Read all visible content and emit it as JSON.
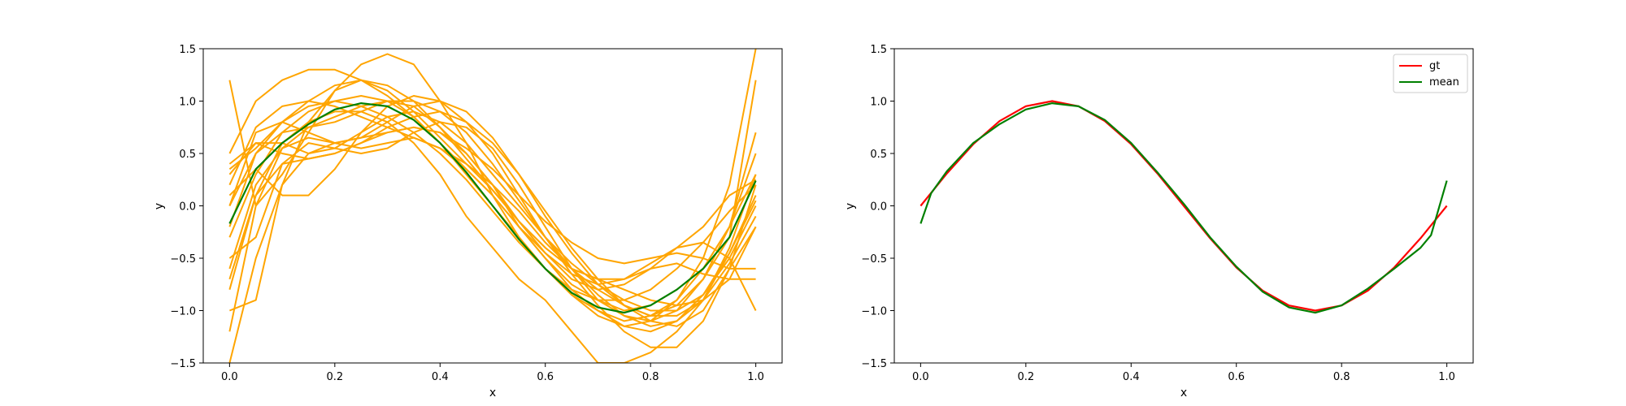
{
  "chart_data": [
    {
      "type": "line",
      "title": "",
      "xlabel": "x",
      "ylabel": "y",
      "xlim": [
        -0.05,
        1.05
      ],
      "ylim": [
        -1.5,
        1.5
      ],
      "xticks": [
        "0.0",
        "0.2",
        "0.4",
        "0.6",
        "0.8",
        "1.0"
      ],
      "yticks": [
        "−1.5",
        "−1.0",
        "−0.5",
        "0.0",
        "0.5",
        "1.0",
        "1.5"
      ],
      "grid": false,
      "colors": {
        "samples": "#ffa500",
        "mean": "#008000"
      },
      "samples": [
        {
          "x": [
            0,
            0.05,
            0.1,
            0.15,
            0.2,
            0.25,
            0.3,
            0.35,
            0.4,
            0.45,
            0.5,
            0.55,
            0.6,
            0.65,
            0.7,
            0.75,
            0.8,
            0.85,
            0.9,
            0.95,
            1
          ],
          "y": [
            -0.6,
            0.2,
            0.55,
            0.75,
            0.85,
            0.95,
            1.0,
            0.95,
            0.75,
            0.5,
            0.2,
            -0.2,
            -0.5,
            -0.75,
            -0.9,
            -1.0,
            -0.95,
            -0.8,
            -0.6,
            -0.2,
            0.3
          ]
        },
        {
          "x": [
            0,
            0.05,
            0.1,
            0.15,
            0.2,
            0.25,
            0.3,
            0.35,
            0.4,
            0.45,
            0.5,
            0.55,
            0.6,
            0.65,
            0.7,
            0.75,
            0.8,
            0.85,
            0.9,
            0.95,
            1
          ],
          "y": [
            1.2,
            0.0,
            0.3,
            0.7,
            1.1,
            1.35,
            1.45,
            1.35,
            1.0,
            0.6,
            0.1,
            -0.3,
            -0.6,
            -0.85,
            -1.05,
            -1.15,
            -1.1,
            -0.9,
            -0.5,
            0.2,
            1.5
          ]
        },
        {
          "x": [
            0,
            0.05,
            0.1,
            0.15,
            0.2,
            0.25,
            0.3,
            0.35,
            0.4,
            0.45,
            0.5,
            0.55,
            0.6,
            0.65,
            0.7,
            0.75,
            0.8,
            0.85,
            0.9,
            0.95,
            1
          ],
          "y": [
            -1.5,
            -0.5,
            0.2,
            0.5,
            0.6,
            0.65,
            0.7,
            0.75,
            0.7,
            0.5,
            0.2,
            -0.15,
            -0.4,
            -0.6,
            -0.7,
            -0.8,
            -0.9,
            -0.95,
            -0.9,
            -0.7,
            -0.2
          ]
        },
        {
          "x": [
            0,
            0.05,
            0.1,
            0.15,
            0.2,
            0.25,
            0.3,
            0.35,
            0.4,
            0.45,
            0.5,
            0.55,
            0.6,
            0.65,
            0.7,
            0.75,
            0.8,
            0.85,
            0.9,
            0.95,
            1
          ],
          "y": [
            0.3,
            0.6,
            0.6,
            0.5,
            0.55,
            0.7,
            0.85,
            0.9,
            0.8,
            0.6,
            0.3,
            0.0,
            -0.3,
            -0.55,
            -0.75,
            -0.9,
            -1.0,
            -1.0,
            -0.85,
            -0.5,
            0.0
          ]
        },
        {
          "x": [
            0,
            0.05,
            0.1,
            0.15,
            0.2,
            0.25,
            0.3,
            0.35,
            0.4,
            0.45,
            0.5,
            0.55,
            0.6,
            0.65,
            0.7,
            0.75,
            0.8,
            0.85,
            0.9,
            0.95,
            1
          ],
          "y": [
            0.0,
            0.7,
            0.8,
            0.7,
            0.6,
            0.55,
            0.6,
            0.65,
            0.55,
            0.35,
            0.1,
            -0.2,
            -0.5,
            -0.8,
            -1.0,
            -1.15,
            -1.2,
            -1.1,
            -0.85,
            -0.45,
            0.1
          ]
        },
        {
          "x": [
            0,
            0.05,
            0.1,
            0.15,
            0.2,
            0.25,
            0.3,
            0.35,
            0.4,
            0.45,
            0.5,
            0.55,
            0.6,
            0.65,
            0.7,
            0.75,
            0.8,
            0.85,
            0.9,
            0.95,
            1
          ],
          "y": [
            -1.0,
            -0.9,
            0.2,
            0.8,
            1.1,
            1.2,
            1.1,
            0.9,
            0.65,
            0.4,
            0.15,
            -0.15,
            -0.45,
            -0.7,
            -0.8,
            -0.75,
            -0.6,
            -0.55,
            -0.65,
            -0.7,
            -0.7
          ]
        },
        {
          "x": [
            0,
            0.05,
            0.1,
            0.15,
            0.2,
            0.25,
            0.3,
            0.35,
            0.4,
            0.45,
            0.5,
            0.55,
            0.6,
            0.65,
            0.7,
            0.75,
            0.8,
            0.85,
            0.9,
            0.95,
            1
          ],
          "y": [
            -0.8,
            0.1,
            0.6,
            0.8,
            0.9,
            0.9,
            0.8,
            0.6,
            0.3,
            -0.1,
            -0.4,
            -0.7,
            -0.9,
            -1.2,
            -1.5,
            -1.5,
            -1.4,
            -1.2,
            -0.9,
            -0.4,
            0.3
          ]
        },
        {
          "x": [
            0,
            0.05,
            0.1,
            0.15,
            0.2,
            0.25,
            0.3,
            0.35,
            0.4,
            0.45,
            0.5,
            0.55,
            0.6,
            0.65,
            0.7,
            0.75,
            0.8,
            0.85,
            0.9,
            0.95,
            1
          ],
          "y": [
            0.4,
            0.6,
            0.5,
            0.45,
            0.5,
            0.6,
            0.7,
            0.75,
            0.7,
            0.55,
            0.35,
            0.1,
            -0.15,
            -0.35,
            -0.5,
            -0.55,
            -0.5,
            -0.45,
            -0.5,
            -0.6,
            -0.6
          ]
        },
        {
          "x": [
            0,
            0.05,
            0.1,
            0.15,
            0.2,
            0.25,
            0.3,
            0.35,
            0.4,
            0.45,
            0.5,
            0.55,
            0.6,
            0.65,
            0.7,
            0.75,
            0.8,
            0.85,
            0.9,
            0.95,
            1
          ],
          "y": [
            -0.3,
            0.3,
            0.7,
            0.9,
            1.0,
            1.05,
            1.0,
            0.85,
            0.6,
            0.3,
            0.0,
            -0.3,
            -0.6,
            -0.85,
            -1.0,
            -1.1,
            -1.05,
            -0.9,
            -0.6,
            -0.2,
            0.5
          ]
        },
        {
          "x": [
            0,
            0.05,
            0.1,
            0.15,
            0.2,
            0.25,
            0.3,
            0.35,
            0.4,
            0.45,
            0.5,
            0.55,
            0.6,
            0.65,
            0.7,
            0.75,
            0.8,
            0.85,
            0.9,
            0.95,
            1
          ],
          "y": [
            0.1,
            0.35,
            0.1,
            0.1,
            0.35,
            0.7,
            0.95,
            1.05,
            1.0,
            0.8,
            0.5,
            0.1,
            -0.3,
            -0.65,
            -0.95,
            -1.2,
            -1.35,
            -1.35,
            -1.1,
            -0.6,
            0.2
          ]
        },
        {
          "x": [
            0,
            0.05,
            0.1,
            0.15,
            0.2,
            0.25,
            0.3,
            0.35,
            0.4,
            0.45,
            0.5,
            0.55,
            0.6,
            0.65,
            0.7,
            0.75,
            0.8,
            0.85,
            0.9,
            0.95,
            1
          ],
          "y": [
            -0.2,
            0.5,
            0.8,
            0.95,
            1.0,
            0.95,
            0.85,
            0.7,
            0.5,
            0.25,
            -0.05,
            -0.35,
            -0.6,
            -0.8,
            -0.9,
            -0.9,
            -0.8,
            -0.6,
            -0.35,
            -0.05,
            0.2
          ]
        },
        {
          "x": [
            0,
            0.05,
            0.1,
            0.15,
            0.2,
            0.25,
            0.3,
            0.35,
            0.4,
            0.45,
            0.5,
            0.55,
            0.6,
            0.65,
            0.7,
            0.75,
            0.8,
            0.85,
            0.9,
            0.95,
            1
          ],
          "y": [
            0.5,
            1.0,
            1.2,
            1.3,
            1.3,
            1.2,
            1.05,
            0.85,
            0.6,
            0.35,
            0.1,
            -0.2,
            -0.45,
            -0.65,
            -0.75,
            -0.7,
            -0.55,
            -0.4,
            -0.35,
            -0.5,
            -1.0
          ]
        },
        {
          "x": [
            0,
            0.05,
            0.1,
            0.15,
            0.2,
            0.25,
            0.3,
            0.35,
            0.4,
            0.45,
            0.5,
            0.55,
            0.6,
            0.65,
            0.7,
            0.75,
            0.8,
            0.85,
            0.9,
            0.95,
            1
          ],
          "y": [
            -0.5,
            -0.3,
            0.4,
            0.6,
            0.55,
            0.5,
            0.55,
            0.7,
            0.8,
            0.75,
            0.55,
            0.2,
            -0.2,
            -0.6,
            -0.9,
            -1.05,
            -1.1,
            -1.0,
            -0.7,
            -0.3,
            1.2
          ]
        },
        {
          "x": [
            0,
            0.05,
            0.1,
            0.15,
            0.2,
            0.25,
            0.3,
            0.35,
            0.4,
            0.45,
            0.5,
            0.55,
            0.6,
            0.65,
            0.7,
            0.75,
            0.8,
            0.85,
            0.9,
            0.95,
            1
          ],
          "y": [
            0.2,
            0.75,
            0.95,
            1.0,
            0.95,
            0.85,
            0.75,
            0.65,
            0.55,
            0.4,
            0.2,
            -0.05,
            -0.35,
            -0.6,
            -0.8,
            -0.95,
            -1.05,
            -1.05,
            -0.9,
            -0.55,
            -0.1
          ]
        },
        {
          "x": [
            0,
            0.05,
            0.1,
            0.15,
            0.2,
            0.25,
            0.3,
            0.35,
            0.4,
            0.45,
            0.5,
            0.55,
            0.6,
            0.65,
            0.7,
            0.75,
            0.8,
            0.85,
            0.9,
            0.95,
            1
          ],
          "y": [
            -1.2,
            0.0,
            0.55,
            0.65,
            0.6,
            0.65,
            0.8,
            0.95,
            1.0,
            0.9,
            0.65,
            0.3,
            -0.1,
            -0.45,
            -0.75,
            -0.95,
            -1.05,
            -0.95,
            -0.7,
            -0.2,
            0.7
          ]
        },
        {
          "x": [
            0,
            0.05,
            0.1,
            0.15,
            0.2,
            0.25,
            0.3,
            0.35,
            0.4,
            0.45,
            0.5,
            0.55,
            0.6,
            0.65,
            0.7,
            0.75,
            0.8,
            0.85,
            0.9,
            0.95,
            1
          ],
          "y": [
            0.35,
            0.55,
            0.8,
            1.0,
            1.15,
            1.2,
            1.15,
            1.0,
            0.75,
            0.45,
            0.15,
            -0.15,
            -0.4,
            -0.6,
            -0.7,
            -0.7,
            -0.6,
            -0.4,
            -0.2,
            0.1,
            0.25
          ]
        },
        {
          "x": [
            0,
            0.05,
            0.1,
            0.15,
            0.2,
            0.25,
            0.3,
            0.35,
            0.4,
            0.45,
            0.5,
            0.55,
            0.6,
            0.65,
            0.7,
            0.75,
            0.8,
            0.85,
            0.9,
            0.95,
            1
          ],
          "y": [
            -0.7,
            0.1,
            0.4,
            0.45,
            0.5,
            0.6,
            0.75,
            0.85,
            0.9,
            0.8,
            0.6,
            0.3,
            -0.05,
            -0.4,
            -0.7,
            -0.95,
            -1.1,
            -1.15,
            -1.0,
            -0.6,
            -0.2
          ]
        },
        {
          "x": [
            0,
            0.05,
            0.1,
            0.15,
            0.2,
            0.25,
            0.3,
            0.35,
            0.4,
            0.45,
            0.5,
            0.55,
            0.6,
            0.65,
            0.7,
            0.75,
            0.8,
            0.85,
            0.9,
            0.95,
            1
          ],
          "y": [
            0.0,
            0.5,
            0.7,
            0.75,
            0.8,
            0.9,
            1.0,
            1.0,
            0.9,
            0.7,
            0.4,
            0.05,
            -0.3,
            -0.6,
            -0.85,
            -1.05,
            -1.15,
            -1.1,
            -0.9,
            -0.45,
            0.05
          ]
        }
      ],
      "mean": {
        "x": [
          0,
          0.05,
          0.1,
          0.15,
          0.2,
          0.25,
          0.3,
          0.35,
          0.4,
          0.45,
          0.5,
          0.55,
          0.6,
          0.65,
          0.7,
          0.75,
          0.8,
          0.85,
          0.9,
          0.95,
          1
        ],
        "y": [
          -0.17,
          0.35,
          0.6,
          0.78,
          0.92,
          0.98,
          0.95,
          0.82,
          0.6,
          0.32,
          0.0,
          -0.32,
          -0.6,
          -0.83,
          -0.97,
          -1.02,
          -0.95,
          -0.8,
          -0.6,
          -0.3,
          0.24
        ]
      }
    },
    {
      "type": "line",
      "title": "",
      "xlabel": "x",
      "ylabel": "y",
      "xlim": [
        -0.05,
        1.05
      ],
      "ylim": [
        -1.5,
        1.5
      ],
      "xticks": [
        "0.0",
        "0.2",
        "0.4",
        "0.6",
        "0.8",
        "1.0"
      ],
      "yticks": [
        "−1.5",
        "−1.0",
        "−0.5",
        "0.0",
        "0.5",
        "1.0",
        "1.5"
      ],
      "grid": false,
      "legend_position": "top-right",
      "series": [
        {
          "name": "gt",
          "color": "#ff0000",
          "x": [
            0,
            0.05,
            0.1,
            0.15,
            0.2,
            0.25,
            0.3,
            0.35,
            0.4,
            0.45,
            0.5,
            0.55,
            0.6,
            0.65,
            0.7,
            0.75,
            0.8,
            0.85,
            0.9,
            0.95,
            1
          ],
          "y": [
            0.0,
            0.309,
            0.588,
            0.809,
            0.951,
            1.0,
            0.951,
            0.809,
            0.588,
            0.309,
            0.0,
            -0.309,
            -0.588,
            -0.809,
            -0.951,
            -1.0,
            -0.951,
            -0.809,
            -0.588,
            -0.309,
            0.0
          ]
        },
        {
          "name": "mean",
          "color": "#008000",
          "x": [
            0,
            0.02,
            0.05,
            0.1,
            0.15,
            0.2,
            0.25,
            0.3,
            0.35,
            0.4,
            0.45,
            0.5,
            0.55,
            0.6,
            0.65,
            0.7,
            0.75,
            0.8,
            0.85,
            0.9,
            0.95,
            0.97,
            1
          ],
          "y": [
            -0.17,
            0.12,
            0.33,
            0.6,
            0.78,
            0.92,
            0.98,
            0.95,
            0.82,
            0.6,
            0.32,
            0.02,
            -0.3,
            -0.58,
            -0.82,
            -0.97,
            -1.02,
            -0.95,
            -0.79,
            -0.6,
            -0.4,
            -0.28,
            0.24
          ]
        }
      ]
    }
  ]
}
